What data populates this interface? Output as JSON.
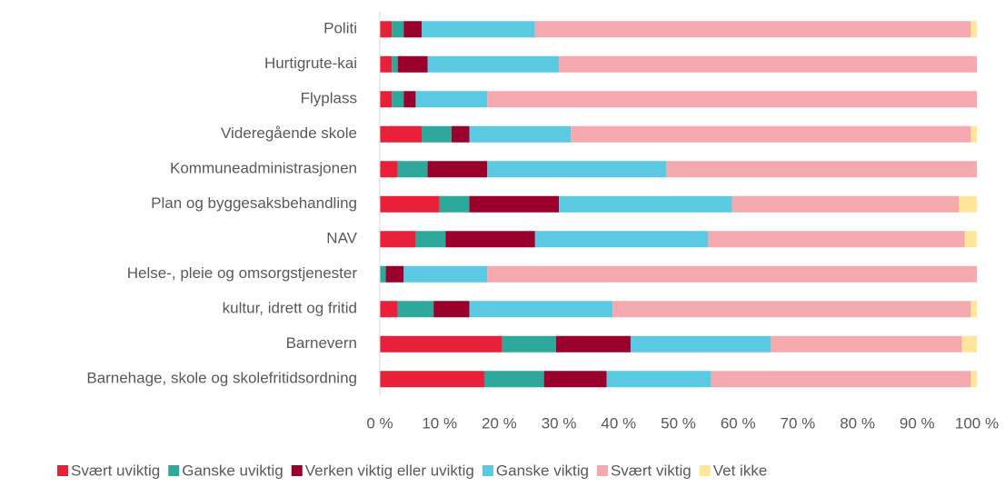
{
  "chart_data": {
    "type": "stacked_barh",
    "categories": [
      "Politi",
      "Hurtigrute-kai",
      "Flyplass",
      "Videregående skole",
      "Kommuneadministrasjonen",
      "Plan og byggesaksbehandling",
      "NAV",
      "Helse-, pleie og omsorgstjenester",
      "kultur, idrett og fritid",
      "Barnevern",
      "Barnehage, skole og skolefritidsordning"
    ],
    "series": [
      {
        "name": "Svært uviktig",
        "color": "#e8203a",
        "values": [
          2,
          2,
          2,
          7,
          3,
          10,
          6,
          0,
          3,
          20.5,
          17.5
        ]
      },
      {
        "name": "Ganske uviktig",
        "color": "#2ea89a",
        "values": [
          2,
          1,
          2,
          5,
          5,
          5,
          5,
          1,
          6,
          9,
          10
        ]
      },
      {
        "name": "Verken viktig eller uviktig",
        "color": "#99002c",
        "values": [
          3,
          5,
          2,
          3,
          10,
          15,
          15,
          3,
          6,
          12.5,
          10.5
        ]
      },
      {
        "name": "Ganske viktig",
        "color": "#5bc9e1",
        "values": [
          19,
          22,
          12,
          17,
          30,
          29,
          29,
          14,
          24,
          23.5,
          17.5
        ]
      },
      {
        "name": "Svært viktig",
        "color": "#f4a9ae",
        "values": [
          73,
          70,
          82,
          67,
          52,
          38,
          43,
          82,
          60,
          32,
          43.5
        ]
      },
      {
        "name": "Vet ikke",
        "color": "#fde59a",
        "values": [
          1,
          0,
          0,
          1,
          0,
          3,
          2,
          0,
          1,
          2.5,
          1
        ]
      }
    ],
    "xlim": [
      0,
      100
    ],
    "xticks": [
      {
        "value": 0,
        "label": "0 %"
      },
      {
        "value": 10,
        "label": "10 %"
      },
      {
        "value": 20,
        "label": "20 %"
      },
      {
        "value": 30,
        "label": "30 %"
      },
      {
        "value": 40,
        "label": "40 %"
      },
      {
        "value": 50,
        "label": "50 %"
      },
      {
        "value": 60,
        "label": "60 %"
      },
      {
        "value": 70,
        "label": "70 %"
      },
      {
        "value": 80,
        "label": "80 %"
      },
      {
        "value": 90,
        "label": "90 %"
      },
      {
        "value": 100,
        "label": "100 %"
      }
    ],
    "legend": "bottom"
  }
}
